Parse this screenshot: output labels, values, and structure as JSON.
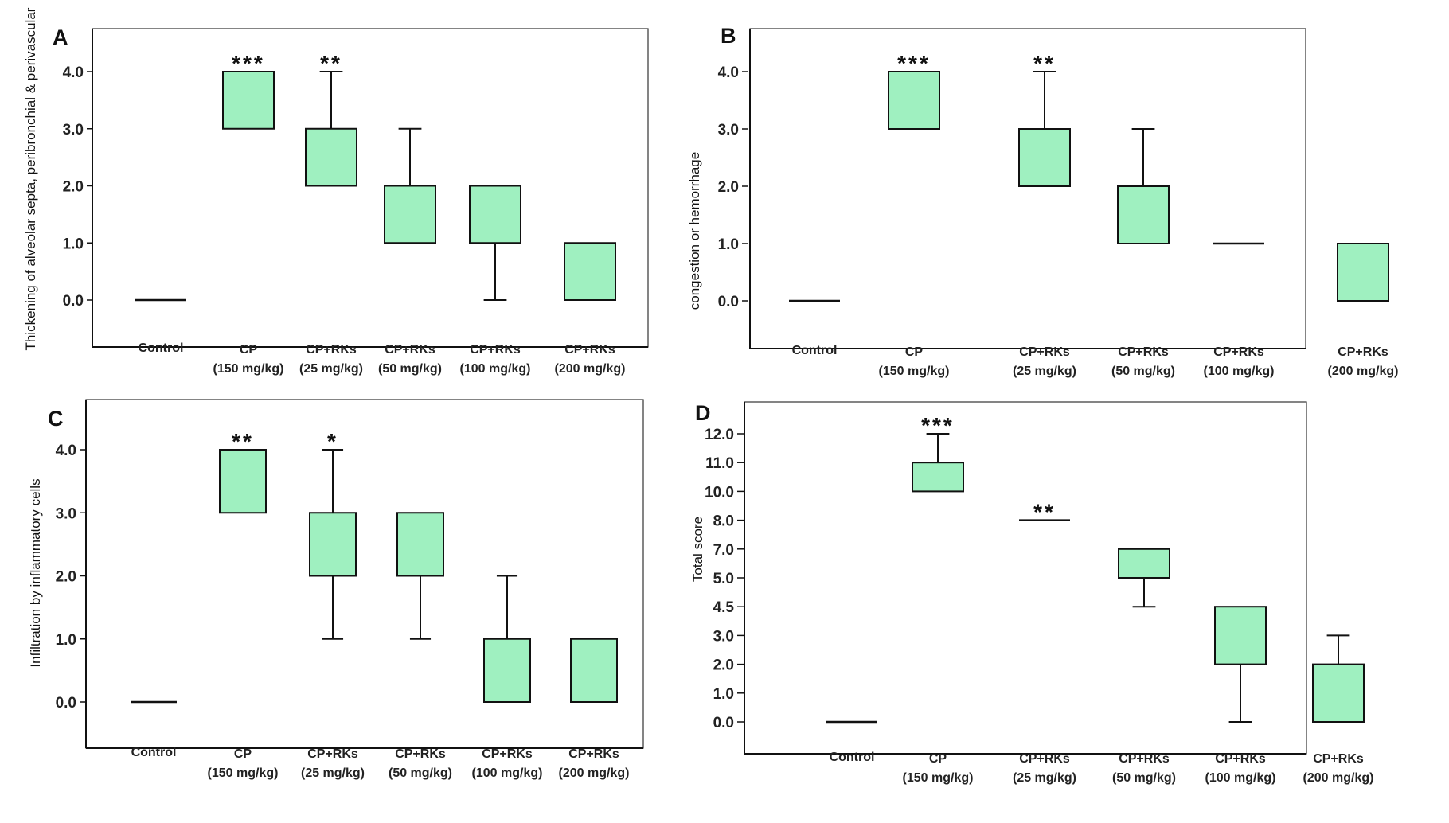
{
  "chart_data": [
    {
      "panel": "A",
      "type": "box",
      "ylabel": "Thickening of alveolar septa, peribronchial & perivascular",
      "ylim": [
        -0.8,
        4.8
      ],
      "yticks": [
        "0.0",
        "1.0",
        "2.0",
        "3.0",
        "4.0"
      ],
      "categories": [
        {
          "name": "Control",
          "dose": ""
        },
        {
          "name": "CP",
          "dose": "(150 mg/kg)"
        },
        {
          "name": "CP+RKs",
          "dose": "(25 mg/kg)"
        },
        {
          "name": "CP+RKs",
          "dose": "(50 mg/kg)"
        },
        {
          "name": "CP+RKs",
          "dose": "(100 mg/kg)"
        },
        {
          "name": "CP+RKs",
          "dose": "(200 mg/kg)"
        }
      ],
      "boxes": [
        {
          "min": 0,
          "q1": 0,
          "q3": 0,
          "max": 0,
          "sig": ""
        },
        {
          "min": 3,
          "q1": 3,
          "q3": 4,
          "max": 4,
          "sig": "***"
        },
        {
          "min": 2,
          "q1": 2,
          "q3": 3,
          "max": 4,
          "sig": "**"
        },
        {
          "min": 1,
          "q1": 1,
          "q3": 2,
          "max": 3,
          "sig": ""
        },
        {
          "min": 0,
          "q1": 1,
          "q3": 2,
          "max": 2,
          "sig": ""
        },
        {
          "min": 0,
          "q1": 0,
          "q3": 1,
          "max": 1,
          "sig": ""
        }
      ]
    },
    {
      "panel": "B",
      "type": "box",
      "ylabel": "congestion or hemorrhage",
      "ylim": [
        -0.8,
        4.8
      ],
      "yticks": [
        "0.0",
        "1.0",
        "2.0",
        "3.0",
        "4.0"
      ],
      "categories": [
        {
          "name": "Control",
          "dose": ""
        },
        {
          "name": "CP",
          "dose": "(150 mg/kg)"
        },
        {
          "name": "CP+RKs",
          "dose": "(25 mg/kg)"
        },
        {
          "name": "CP+RKs",
          "dose": "(50 mg/kg)"
        },
        {
          "name": "CP+RKs",
          "dose": "(100 mg/kg)"
        },
        {
          "name": "CP+RKs",
          "dose": "(200 mg/kg)"
        }
      ],
      "boxes": [
        {
          "min": 0,
          "q1": 0,
          "q3": 0,
          "max": 0,
          "sig": ""
        },
        {
          "min": 3,
          "q1": 3,
          "q3": 4,
          "max": 4,
          "sig": "***"
        },
        {
          "min": 2,
          "q1": 2,
          "q3": 3,
          "max": 4,
          "sig": "**"
        },
        {
          "min": 1,
          "q1": 1,
          "q3": 2,
          "max": 3,
          "sig": ""
        },
        {
          "min": 1,
          "q1": 1,
          "q3": 1,
          "max": 1,
          "sig": ""
        },
        {
          "min": 0,
          "q1": 0,
          "q3": 1,
          "max": 1,
          "sig": ""
        }
      ]
    },
    {
      "panel": "C",
      "type": "box",
      "ylabel": "Infiltration by inflammatory cells",
      "ylim": [
        -0.8,
        4.8
      ],
      "yticks": [
        "0.0",
        "1.0",
        "2.0",
        "3.0",
        "4.0"
      ],
      "categories": [
        {
          "name": "Control",
          "dose": ""
        },
        {
          "name": "CP",
          "dose": "(150 mg/kg)"
        },
        {
          "name": "CP+RKs",
          "dose": "(25 mg/kg)"
        },
        {
          "name": "CP+RKs",
          "dose": "(50 mg/kg)"
        },
        {
          "name": "CP+RKs",
          "dose": "(100 mg/kg)"
        },
        {
          "name": "CP+RKs",
          "dose": "(200 mg/kg)"
        }
      ],
      "boxes": [
        {
          "min": 0,
          "q1": 0,
          "q3": 0,
          "max": 0,
          "sig": ""
        },
        {
          "min": 3,
          "q1": 3,
          "q3": 4,
          "max": 4,
          "sig": "**"
        },
        {
          "min": 1,
          "q1": 2,
          "q3": 3,
          "max": 4,
          "sig": "*"
        },
        {
          "min": 1,
          "q1": 2,
          "q3": 3,
          "max": 3,
          "sig": ""
        },
        {
          "min": 0,
          "q1": 0,
          "q3": 1,
          "max": 2,
          "sig": ""
        },
        {
          "min": 0,
          "q1": 0,
          "q3": 1,
          "max": 1,
          "sig": ""
        }
      ]
    },
    {
      "panel": "D",
      "type": "box",
      "ylabel": "Total score",
      "axis_note": "non-linear axis; tick labels evenly spaced, values mapped by tick position",
      "ylim_ticks": [
        -1,
        12.8
      ],
      "yticks": [
        "0.0",
        "1.0",
        "2.0",
        "3.0",
        "4.5",
        "5.0",
        "7.0",
        "8.0",
        "10.0",
        "11.0",
        "12.0"
      ],
      "categories": [
        {
          "name": "Control",
          "dose": ""
        },
        {
          "name": "CP",
          "dose": "(150 mg/kg)"
        },
        {
          "name": "CP+RKs",
          "dose": "(25 mg/kg)"
        },
        {
          "name": "CP+RKs",
          "dose": "(50 mg/kg)"
        },
        {
          "name": "CP+RKs",
          "dose": "(100 mg/kg)"
        },
        {
          "name": "CP+RKs",
          "dose": "(200 mg/kg)"
        }
      ],
      "boxes": [
        {
          "min": 0,
          "q1": 0,
          "q3": 0,
          "max": 0,
          "sig": ""
        },
        {
          "min": 10,
          "q1": 10,
          "q3": 11,
          "max": 12,
          "sig": "***"
        },
        {
          "min": 8,
          "q1": 8,
          "q3": 8,
          "max": 8,
          "sig": "**"
        },
        {
          "min": 4.5,
          "q1": 5,
          "q3": 7,
          "max": 7,
          "sig": ""
        },
        {
          "min": 0,
          "q1": 2,
          "q3": 4.5,
          "max": 4.5,
          "sig": ""
        },
        {
          "min": 0,
          "q1": 0,
          "q3": 2,
          "max": 3,
          "sig": ""
        }
      ]
    }
  ],
  "colors": {
    "box_fill": "#9ff0c0",
    "stroke": "#111111",
    "frame": "#333333"
  }
}
